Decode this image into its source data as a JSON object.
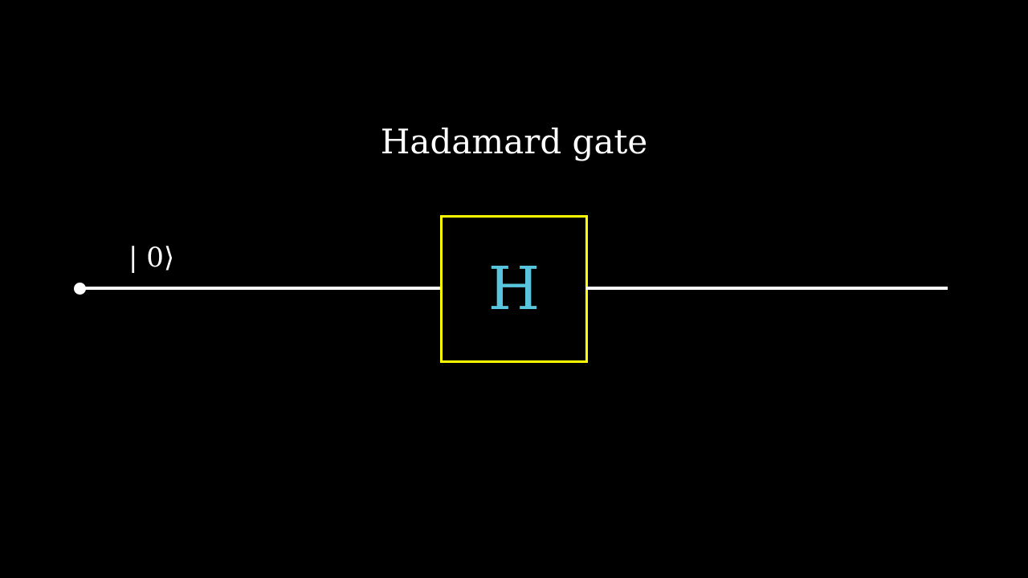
{
  "title": "Hadamard gate",
  "input_state": "| 0⟩",
  "gate": {
    "label": "H"
  },
  "colors": {
    "background": "#000000",
    "wire": "#ffffff",
    "text": "#ffffff",
    "gate_border": "#ffff00",
    "gate_label": "#58c4dd"
  }
}
